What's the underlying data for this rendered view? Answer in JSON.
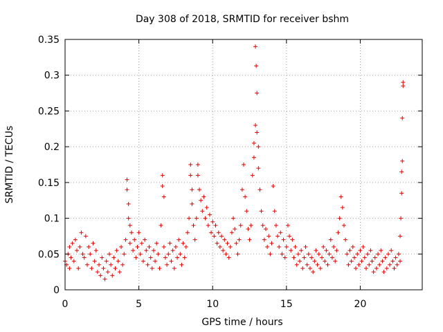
{
  "chart_data": {
    "type": "scatter",
    "title": "Day 308 of 2018, SRMTID for receiver bshm",
    "xlabel": "GPS time / hours",
    "ylabel": "SRMTID / TECUs",
    "xlim": [
      0,
      24.2
    ],
    "ylim": [
      0,
      0.35
    ],
    "xticks": [
      0,
      5,
      10,
      15,
      20
    ],
    "xtick_labels": [
      "0",
      "5",
      "10",
      "15",
      "20"
    ],
    "yticks": [
      0,
      0.05,
      0.1,
      0.15,
      0.2,
      0.25,
      0.3,
      0.35
    ],
    "ytick_labels": [
      "0",
      "0.05",
      "0.1",
      "0.15",
      "0.2",
      "0.25",
      "0.3",
      "0.35"
    ],
    "grid": true,
    "marker": "+",
    "color": "#e00000",
    "series": [
      {
        "name": "SRMTID",
        "points": [
          [
            0.0,
            0.04
          ],
          [
            0.1,
            0.035
          ],
          [
            0.2,
            0.05
          ],
          [
            0.3,
            0.03
          ],
          [
            0.3,
            0.06
          ],
          [
            0.4,
            0.045
          ],
          [
            0.5,
            0.065
          ],
          [
            0.6,
            0.04
          ],
          [
            0.7,
            0.07
          ],
          [
            0.8,
            0.055
          ],
          [
            0.9,
            0.03
          ],
          [
            1.0,
            0.06
          ],
          [
            1.1,
            0.08
          ],
          [
            1.2,
            0.05
          ],
          [
            1.3,
            0.045
          ],
          [
            1.4,
            0.075
          ],
          [
            1.5,
            0.035
          ],
          [
            1.6,
            0.06
          ],
          [
            1.7,
            0.05
          ],
          [
            1.8,
            0.03
          ],
          [
            1.9,
            0.065
          ],
          [
            2.0,
            0.04
          ],
          [
            2.1,
            0.055
          ],
          [
            2.2,
            0.025
          ],
          [
            2.3,
            0.035
          ],
          [
            2.4,
            0.02
          ],
          [
            2.5,
            0.045
          ],
          [
            2.6,
            0.03
          ],
          [
            2.7,
            0.015
          ],
          [
            2.8,
            0.04
          ],
          [
            2.9,
            0.025
          ],
          [
            3.0,
            0.05
          ],
          [
            3.1,
            0.035
          ],
          [
            3.2,
            0.02
          ],
          [
            3.3,
            0.045
          ],
          [
            3.4,
            0.03
          ],
          [
            3.5,
            0.055
          ],
          [
            3.6,
            0.04
          ],
          [
            3.7,
            0.025
          ],
          [
            3.8,
            0.06
          ],
          [
            3.9,
            0.035
          ],
          [
            4.0,
            0.05
          ],
          [
            4.1,
            0.07
          ],
          [
            4.2,
            0.154
          ],
          [
            4.2,
            0.14
          ],
          [
            4.3,
            0.12
          ],
          [
            4.3,
            0.1
          ],
          [
            4.4,
            0.09
          ],
          [
            4.4,
            0.065
          ],
          [
            4.5,
            0.08
          ],
          [
            4.6,
            0.055
          ],
          [
            4.7,
            0.07
          ],
          [
            4.8,
            0.045
          ],
          [
            4.9,
            0.06
          ],
          [
            5.0,
            0.08
          ],
          [
            5.1,
            0.05
          ],
          [
            5.2,
            0.065
          ],
          [
            5.3,
            0.04
          ],
          [
            5.4,
            0.07
          ],
          [
            5.5,
            0.055
          ],
          [
            5.6,
            0.035
          ],
          [
            5.7,
            0.06
          ],
          [
            5.8,
            0.045
          ],
          [
            5.9,
            0.03
          ],
          [
            6.0,
            0.055
          ],
          [
            6.1,
            0.04
          ],
          [
            6.2,
            0.065
          ],
          [
            6.3,
            0.05
          ],
          [
            6.4,
            0.03
          ],
          [
            6.5,
            0.09
          ],
          [
            6.6,
            0.16
          ],
          [
            6.6,
            0.145
          ],
          [
            6.7,
            0.13
          ],
          [
            6.7,
            0.06
          ],
          [
            6.8,
            0.045
          ],
          [
            6.9,
            0.035
          ],
          [
            7.0,
            0.05
          ],
          [
            7.1,
            0.065
          ],
          [
            7.2,
            0.04
          ],
          [
            7.3,
            0.055
          ],
          [
            7.4,
            0.03
          ],
          [
            7.5,
            0.06
          ],
          [
            7.6,
            0.045
          ],
          [
            7.7,
            0.07
          ],
          [
            7.8,
            0.05
          ],
          [
            7.9,
            0.035
          ],
          [
            8.0,
            0.065
          ],
          [
            8.1,
            0.045
          ],
          [
            8.2,
            0.06
          ],
          [
            8.3,
            0.08
          ],
          [
            8.4,
            0.1
          ],
          [
            8.5,
            0.175
          ],
          [
            8.5,
            0.16
          ],
          [
            8.6,
            0.14
          ],
          [
            8.6,
            0.12
          ],
          [
            8.7,
            0.09
          ],
          [
            8.8,
            0.07
          ],
          [
            8.9,
            0.1
          ],
          [
            9.0,
            0.175
          ],
          [
            9.0,
            0.16
          ],
          [
            9.1,
            0.14
          ],
          [
            9.2,
            0.125
          ],
          [
            9.3,
            0.11
          ],
          [
            9.4,
            0.13
          ],
          [
            9.5,
            0.1
          ],
          [
            9.6,
            0.115
          ],
          [
            9.7,
            0.09
          ],
          [
            9.8,
            0.105
          ],
          [
            9.9,
            0.08
          ],
          [
            10.0,
            0.095
          ],
          [
            10.1,
            0.075
          ],
          [
            10.2,
            0.09
          ],
          [
            10.3,
            0.065
          ],
          [
            10.4,
            0.08
          ],
          [
            10.5,
            0.06
          ],
          [
            10.6,
            0.075
          ],
          [
            10.7,
            0.055
          ],
          [
            10.8,
            0.07
          ],
          [
            10.9,
            0.05
          ],
          [
            11.0,
            0.065
          ],
          [
            11.1,
            0.045
          ],
          [
            11.2,
            0.06
          ],
          [
            11.3,
            0.08
          ],
          [
            11.4,
            0.1
          ],
          [
            11.5,
            0.085
          ],
          [
            11.6,
            0.065
          ],
          [
            11.7,
            0.05
          ],
          [
            11.8,
            0.07
          ],
          [
            11.9,
            0.09
          ],
          [
            12.0,
            0.14
          ],
          [
            12.1,
            0.175
          ],
          [
            12.2,
            0.13
          ],
          [
            12.3,
            0.11
          ],
          [
            12.4,
            0.085
          ],
          [
            12.5,
            0.07
          ],
          [
            12.6,
            0.09
          ],
          [
            12.7,
            0.16
          ],
          [
            12.8,
            0.185
          ],
          [
            12.8,
            0.205
          ],
          [
            12.9,
            0.23
          ],
          [
            12.9,
            0.34
          ],
          [
            12.95,
            0.313
          ],
          [
            13.0,
            0.275
          ],
          [
            13.0,
            0.22
          ],
          [
            13.1,
            0.2
          ],
          [
            13.1,
            0.17
          ],
          [
            13.2,
            0.14
          ],
          [
            13.3,
            0.11
          ],
          [
            13.4,
            0.09
          ],
          [
            13.5,
            0.07
          ],
          [
            13.6,
            0.085
          ],
          [
            13.7,
            0.06
          ],
          [
            13.8,
            0.075
          ],
          [
            13.9,
            0.05
          ],
          [
            14.0,
            0.065
          ],
          [
            14.1,
            0.145
          ],
          [
            14.2,
            0.11
          ],
          [
            14.3,
            0.09
          ],
          [
            14.4,
            0.075
          ],
          [
            14.5,
            0.06
          ],
          [
            14.6,
            0.08
          ],
          [
            14.7,
            0.05
          ],
          [
            14.8,
            0.07
          ],
          [
            14.9,
            0.045
          ],
          [
            15.0,
            0.06
          ],
          [
            15.1,
            0.09
          ],
          [
            15.2,
            0.075
          ],
          [
            15.3,
            0.055
          ],
          [
            15.4,
            0.07
          ],
          [
            15.5,
            0.045
          ],
          [
            15.6,
            0.06
          ],
          [
            15.7,
            0.035
          ],
          [
            15.8,
            0.05
          ],
          [
            15.9,
            0.04
          ],
          [
            16.0,
            0.055
          ],
          [
            16.1,
            0.03
          ],
          [
            16.2,
            0.045
          ],
          [
            16.3,
            0.06
          ],
          [
            16.4,
            0.035
          ],
          [
            16.5,
            0.05
          ],
          [
            16.6,
            0.03
          ],
          [
            16.7,
            0.045
          ],
          [
            16.8,
            0.025
          ],
          [
            16.9,
            0.04
          ],
          [
            17.0,
            0.055
          ],
          [
            17.1,
            0.035
          ],
          [
            17.2,
            0.05
          ],
          [
            17.3,
            0.03
          ],
          [
            17.4,
            0.045
          ],
          [
            17.5,
            0.06
          ],
          [
            17.6,
            0.04
          ],
          [
            17.7,
            0.055
          ],
          [
            17.8,
            0.035
          ],
          [
            17.9,
            0.05
          ],
          [
            18.0,
            0.07
          ],
          [
            18.1,
            0.045
          ],
          [
            18.2,
            0.06
          ],
          [
            18.3,
            0.04
          ],
          [
            18.4,
            0.055
          ],
          [
            18.5,
            0.08
          ],
          [
            18.6,
            0.1
          ],
          [
            18.7,
            0.13
          ],
          [
            18.8,
            0.115
          ],
          [
            18.9,
            0.09
          ],
          [
            19.0,
            0.07
          ],
          [
            19.1,
            0.05
          ],
          [
            19.2,
            0.035
          ],
          [
            19.3,
            0.055
          ],
          [
            19.4,
            0.04
          ],
          [
            19.5,
            0.06
          ],
          [
            19.6,
            0.045
          ],
          [
            19.7,
            0.03
          ],
          [
            19.8,
            0.05
          ],
          [
            19.9,
            0.035
          ],
          [
            20.0,
            0.055
          ],
          [
            20.1,
            0.04
          ],
          [
            20.2,
            0.06
          ],
          [
            20.3,
            0.045
          ],
          [
            20.4,
            0.03
          ],
          [
            20.5,
            0.05
          ],
          [
            20.6,
            0.035
          ],
          [
            20.7,
            0.055
          ],
          [
            20.8,
            0.04
          ],
          [
            20.9,
            0.025
          ],
          [
            21.0,
            0.045
          ],
          [
            21.1,
            0.03
          ],
          [
            21.2,
            0.05
          ],
          [
            21.3,
            0.035
          ],
          [
            21.4,
            0.055
          ],
          [
            21.5,
            0.04
          ],
          [
            21.6,
            0.025
          ],
          [
            21.7,
            0.045
          ],
          [
            21.8,
            0.03
          ],
          [
            21.9,
            0.05
          ],
          [
            22.0,
            0.035
          ],
          [
            22.1,
            0.055
          ],
          [
            22.2,
            0.04
          ],
          [
            22.3,
            0.03
          ],
          [
            22.4,
            0.045
          ],
          [
            22.5,
            0.035
          ],
          [
            22.6,
            0.05
          ],
          [
            22.7,
            0.075
          ],
          [
            22.75,
            0.1
          ],
          [
            22.8,
            0.135
          ],
          [
            22.8,
            0.165
          ],
          [
            22.85,
            0.18
          ],
          [
            22.85,
            0.24
          ],
          [
            22.9,
            0.29
          ],
          [
            22.9,
            0.285
          ],
          [
            22.7,
            0.04
          ]
        ]
      }
    ]
  }
}
